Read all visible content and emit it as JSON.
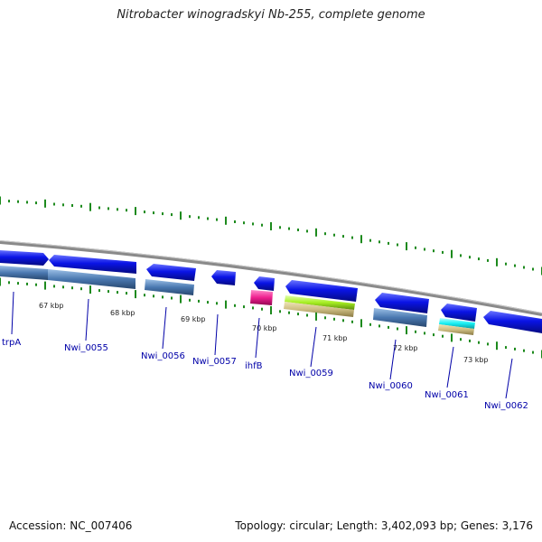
{
  "title": "Nitrobacter winogradskyi Nb-255, complete genome",
  "footer": {
    "accession": "Accession: NC_007406",
    "summary": "Topology: circular; Length: 3,402,093 bp; Genes: 3,176"
  },
  "colors": {
    "backbone": "#8a8a8a",
    "gene_blue": "#0a14e6",
    "cds_steel": "#4a78b0",
    "ticks": "#1d8a1d",
    "label": "#0000a8",
    "magenta": "#ee1f8e",
    "lime": "#a6ee22",
    "tan": "#cdbd82",
    "cyan": "#17f0f4"
  },
  "scale_labels": [
    {
      "text": "67 kbp"
    },
    {
      "text": "68 kbp"
    },
    {
      "text": "69 kbp"
    },
    {
      "text": "70 kbp"
    },
    {
      "text": "71 kbp"
    },
    {
      "text": "72 kbp"
    },
    {
      "text": "73 kbp"
    }
  ],
  "gene_labels": [
    {
      "text": "trpA"
    },
    {
      "text": "Nwi_0055"
    },
    {
      "text": "Nwi_0056"
    },
    {
      "text": "Nwi_0057"
    },
    {
      "text": "ihfB"
    },
    {
      "text": "Nwi_0059"
    },
    {
      "text": "Nwi_0060"
    },
    {
      "text": "Nwi_0061"
    },
    {
      "text": "Nwi_0062"
    }
  ]
}
